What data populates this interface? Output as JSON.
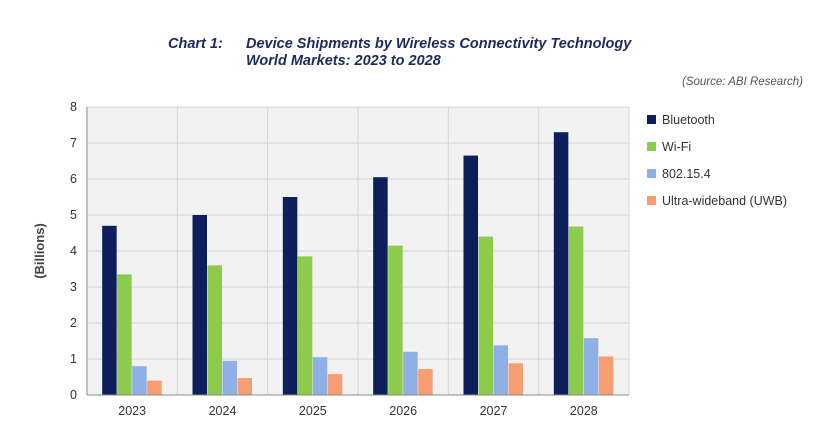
{
  "title": {
    "label": "Chart 1:",
    "line1": "Device Shipments by Wireless Connectivity Technology",
    "line2": "World Markets: 2023 to 2028"
  },
  "source": "(Source: ABI Research)",
  "chart_data": {
    "type": "bar",
    "categories": [
      "2023",
      "2024",
      "2025",
      "2026",
      "2027",
      "2028"
    ],
    "series": [
      {
        "name": "Bluetooth",
        "color": "#0c1f5c",
        "values": [
          4.7,
          5.0,
          5.5,
          6.05,
          6.65,
          7.3
        ]
      },
      {
        "name": "Wi-Fi",
        "color": "#8ccb4c",
        "values": [
          3.35,
          3.6,
          3.85,
          4.15,
          4.4,
          4.68
        ]
      },
      {
        "name": "802.15.4",
        "color": "#8fb0e6",
        "values": [
          0.8,
          0.95,
          1.05,
          1.2,
          1.38,
          1.58
        ]
      },
      {
        "name": "Ultra-wideband (UWB)",
        "color": "#f79d72",
        "values": [
          0.4,
          0.47,
          0.58,
          0.72,
          0.88,
          1.07
        ]
      }
    ],
    "ylabel": "(Billions)",
    "ylim": [
      0,
      8
    ],
    "yticks": [
      "0",
      "1",
      "2",
      "3",
      "4",
      "5",
      "6",
      "7",
      "8"
    ],
    "grid": true,
    "legend": "right"
  }
}
